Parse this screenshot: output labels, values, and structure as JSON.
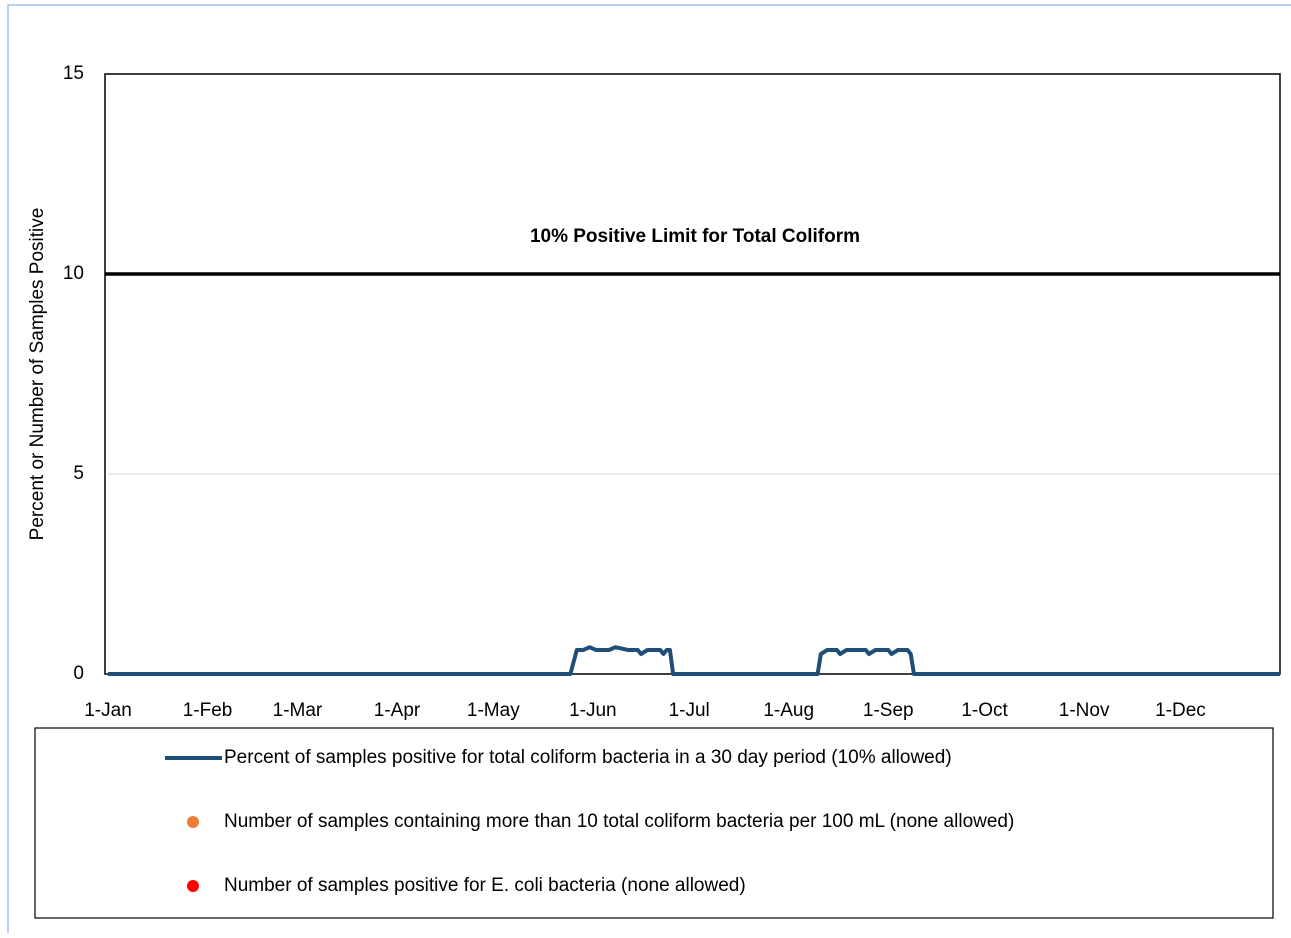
{
  "chart_data": {
    "type": "line",
    "y_label": "Percent or Number of Samples Positive",
    "xlim": [
      0,
      365
    ],
    "xticks": [
      {
        "value": 0,
        "label": "1-Jan"
      },
      {
        "value": 31,
        "label": "1-Feb"
      },
      {
        "value": 59,
        "label": "1-Mar"
      },
      {
        "value": 90,
        "label": "1-Apr"
      },
      {
        "value": 120,
        "label": "1-May"
      },
      {
        "value": 151,
        "label": "1-Jun"
      },
      {
        "value": 181,
        "label": "1-Jul"
      },
      {
        "value": 212,
        "label": "1-Aug"
      },
      {
        "value": 243,
        "label": "1-Sep"
      },
      {
        "value": 273,
        "label": "1-Oct"
      },
      {
        "value": 304,
        "label": "1-Nov"
      },
      {
        "value": 334,
        "label": "1-Dec"
      }
    ],
    "ylim": [
      0,
      15
    ],
    "yticks": [
      0,
      5,
      10,
      15
    ],
    "grid": true,
    "limit": {
      "value": 10,
      "label": "10% Positive Limit for Total Coliform",
      "color": "#000000"
    },
    "series": [
      {
        "name": "Percent of samples positive for total coliform bacteria in a 30 day period (10% allowed)",
        "color": "#1f4e79",
        "type": "line",
        "x": [
          0,
          144,
          146,
          148,
          150,
          152,
          156,
          158,
          162,
          165,
          166,
          168,
          172,
          173,
          174,
          175,
          176,
          221,
          222,
          224,
          227,
          228,
          230,
          236,
          237,
          239,
          243,
          244,
          246,
          249,
          250,
          251,
          365
        ],
        "values": [
          0,
          0,
          0.6,
          0.6,
          0.67,
          0.6,
          0.6,
          0.67,
          0.6,
          0.6,
          0.5,
          0.6,
          0.6,
          0.5,
          0.6,
          0.6,
          0,
          0,
          0.5,
          0.6,
          0.6,
          0.5,
          0.6,
          0.6,
          0.5,
          0.6,
          0.6,
          0.5,
          0.6,
          0.6,
          0.5,
          0,
          0
        ]
      },
      {
        "name": "Number of samples containing more than 10 total coliform bacteria per 100 mL (none allowed)",
        "color": "#ed7d31",
        "type": "scatter",
        "x": [],
        "values": []
      },
      {
        "name": "Number of samples positive for E. coli bacteria (none allowed)",
        "color": "#ff0000",
        "type": "scatter",
        "x": [],
        "values": []
      }
    ]
  }
}
